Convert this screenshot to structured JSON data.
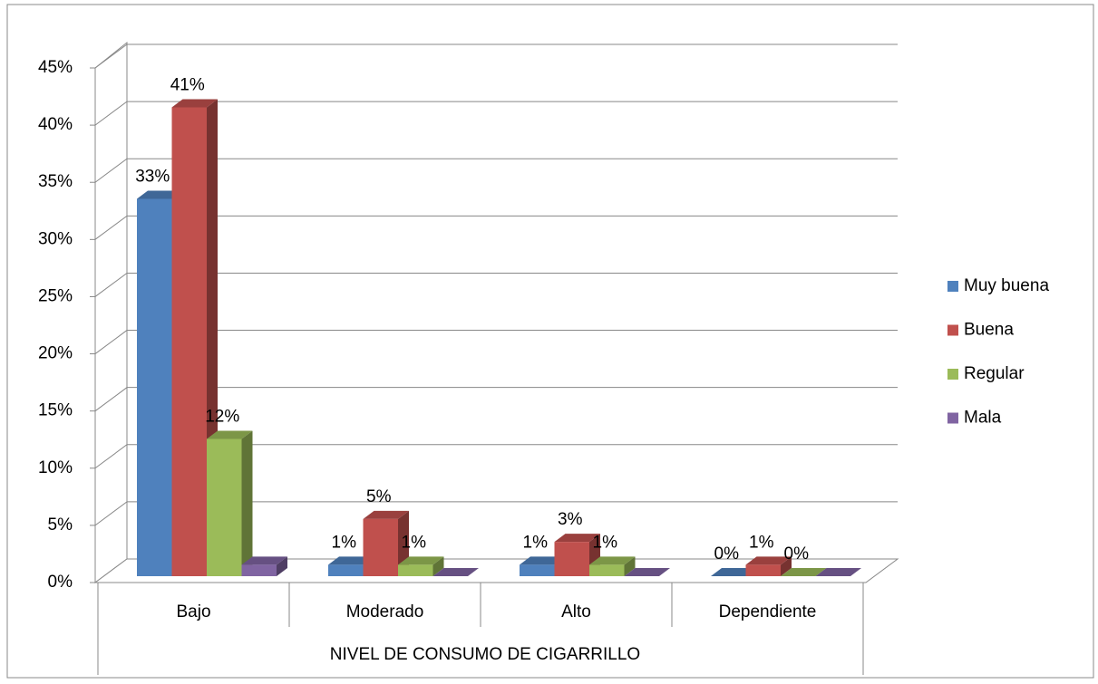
{
  "chart_data": {
    "type": "bar3d",
    "x_label": "NIVEL DE CONSUMO DE CIGARRILLO",
    "categories": [
      "Bajo",
      "Moderado",
      "Alto",
      "Dependiente"
    ],
    "series": [
      {
        "name": "Muy buena",
        "color": "#4f81bd",
        "values": [
          33,
          1,
          1,
          0
        ],
        "value_labels": [
          "33%",
          "1%",
          "1%",
          "0%"
        ]
      },
      {
        "name": "Buena",
        "color": "#c0504d",
        "values": [
          41,
          5,
          3,
          1
        ],
        "value_labels": [
          "41%",
          "5%",
          "3%",
          "1%"
        ]
      },
      {
        "name": "Regular",
        "color": "#9bbb59",
        "values": [
          12,
          1,
          1,
          0
        ],
        "value_labels": [
          "12%",
          "1%",
          "1%",
          "0%"
        ]
      },
      {
        "name": "Mala",
        "color": "#8064a2",
        "values": [
          1,
          0,
          0,
          0
        ]
      }
    ],
    "ylim": [
      0,
      45
    ],
    "yticks": [
      {
        "value": 0,
        "label": "0%"
      },
      {
        "value": 5,
        "label": "5%"
      },
      {
        "value": 10,
        "label": "10%"
      },
      {
        "value": 15,
        "label": "15%"
      },
      {
        "value": 20,
        "label": "20%"
      },
      {
        "value": 25,
        "label": "25%"
      },
      {
        "value": 30,
        "label": "30%"
      },
      {
        "value": 35,
        "label": "35%"
      },
      {
        "value": 40,
        "label": "40%"
      },
      {
        "value": 45,
        "label": "45%"
      }
    ],
    "grid": true,
    "legend": "right"
  }
}
